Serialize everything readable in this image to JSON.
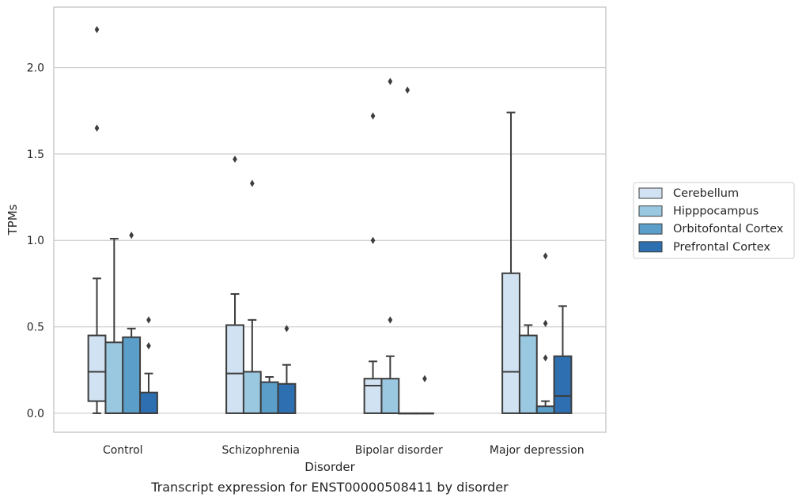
{
  "caption": "Transcript expression for ENST00000508411 by disorder",
  "chart_data": {
    "type": "box",
    "xlabel": "Disorder",
    "ylabel": "TPMs",
    "ylim": [
      -0.11,
      2.35
    ],
    "yticks": [
      "0.0",
      "0.5",
      "1.0",
      "1.5",
      "2.0"
    ],
    "grid": "horizontal",
    "legend_position": "right",
    "categories": [
      "Control",
      "Schizophrenia",
      "Bipolar disorder",
      "Major depression"
    ],
    "series": [
      {
        "name": "Cerebellum",
        "color": "#d1e2f2",
        "boxes": [
          {
            "q1": 0.07,
            "median": 0.24,
            "q3": 0.45,
            "whisker_low": 0.0,
            "whisker_high": 0.78,
            "outliers": [
              2.22,
              1.65
            ]
          },
          {
            "q1": 0.0,
            "median": 0.23,
            "q3": 0.51,
            "whisker_low": 0.0,
            "whisker_high": 0.69,
            "outliers": [
              1.47
            ]
          },
          {
            "q1": 0.0,
            "median": 0.16,
            "q3": 0.2,
            "whisker_low": 0.0,
            "whisker_high": 0.3,
            "outliers": [
              1.72,
              1.0
            ]
          },
          {
            "q1": 0.0,
            "median": 0.24,
            "q3": 0.81,
            "whisker_low": 0.0,
            "whisker_high": 1.74,
            "outliers": []
          }
        ]
      },
      {
        "name": "Hipppocampus",
        "color": "#9ac8e0",
        "boxes": [
          {
            "q1": 0.0,
            "median": 0.0,
            "q3": 0.41,
            "whisker_low": 0.0,
            "whisker_high": 1.01,
            "outliers": []
          },
          {
            "q1": 0.0,
            "median": 0.0,
            "q3": 0.24,
            "whisker_low": 0.0,
            "whisker_high": 0.54,
            "outliers": [
              1.33
            ]
          },
          {
            "q1": 0.0,
            "median": 0.0,
            "q3": 0.2,
            "whisker_low": 0.0,
            "whisker_high": 0.33,
            "outliers": [
              1.92,
              0.54
            ]
          },
          {
            "q1": 0.0,
            "median": 0.0,
            "q3": 0.45,
            "whisker_low": 0.0,
            "whisker_high": 0.51,
            "outliers": []
          }
        ]
      },
      {
        "name": "Orbitofontal Cortex",
        "color": "#5a9ec9",
        "boxes": [
          {
            "q1": 0.0,
            "median": 0.0,
            "q3": 0.44,
            "whisker_low": 0.0,
            "whisker_high": 0.49,
            "outliers": [
              1.03
            ]
          },
          {
            "q1": 0.0,
            "median": 0.0,
            "q3": 0.18,
            "whisker_low": 0.0,
            "whisker_high": 0.21,
            "outliers": []
          },
          {
            "q1": 0.0,
            "median": 0.0,
            "q3": 0.0,
            "whisker_low": 0.0,
            "whisker_high": 0.0,
            "outliers": [
              1.87
            ]
          },
          {
            "q1": 0.0,
            "median": 0.0,
            "q3": 0.04,
            "whisker_low": 0.0,
            "whisker_high": 0.07,
            "outliers": [
              0.91,
              0.52,
              0.32
            ]
          }
        ]
      },
      {
        "name": "Prefrontal Cortex",
        "color": "#2d6fb0",
        "boxes": [
          {
            "q1": 0.0,
            "median": 0.0,
            "q3": 0.12,
            "whisker_low": 0.0,
            "whisker_high": 0.23,
            "outliers": [
              0.54,
              0.39
            ]
          },
          {
            "q1": 0.0,
            "median": 0.0,
            "q3": 0.17,
            "whisker_low": 0.0,
            "whisker_high": 0.28,
            "outliers": [
              0.49
            ]
          },
          {
            "q1": 0.0,
            "median": 0.0,
            "q3": 0.0,
            "whisker_low": 0.0,
            "whisker_high": 0.0,
            "outliers": [
              0.2
            ]
          },
          {
            "q1": 0.0,
            "median": 0.1,
            "q3": 0.33,
            "whisker_low": 0.0,
            "whisker_high": 0.62,
            "outliers": []
          }
        ]
      }
    ]
  }
}
